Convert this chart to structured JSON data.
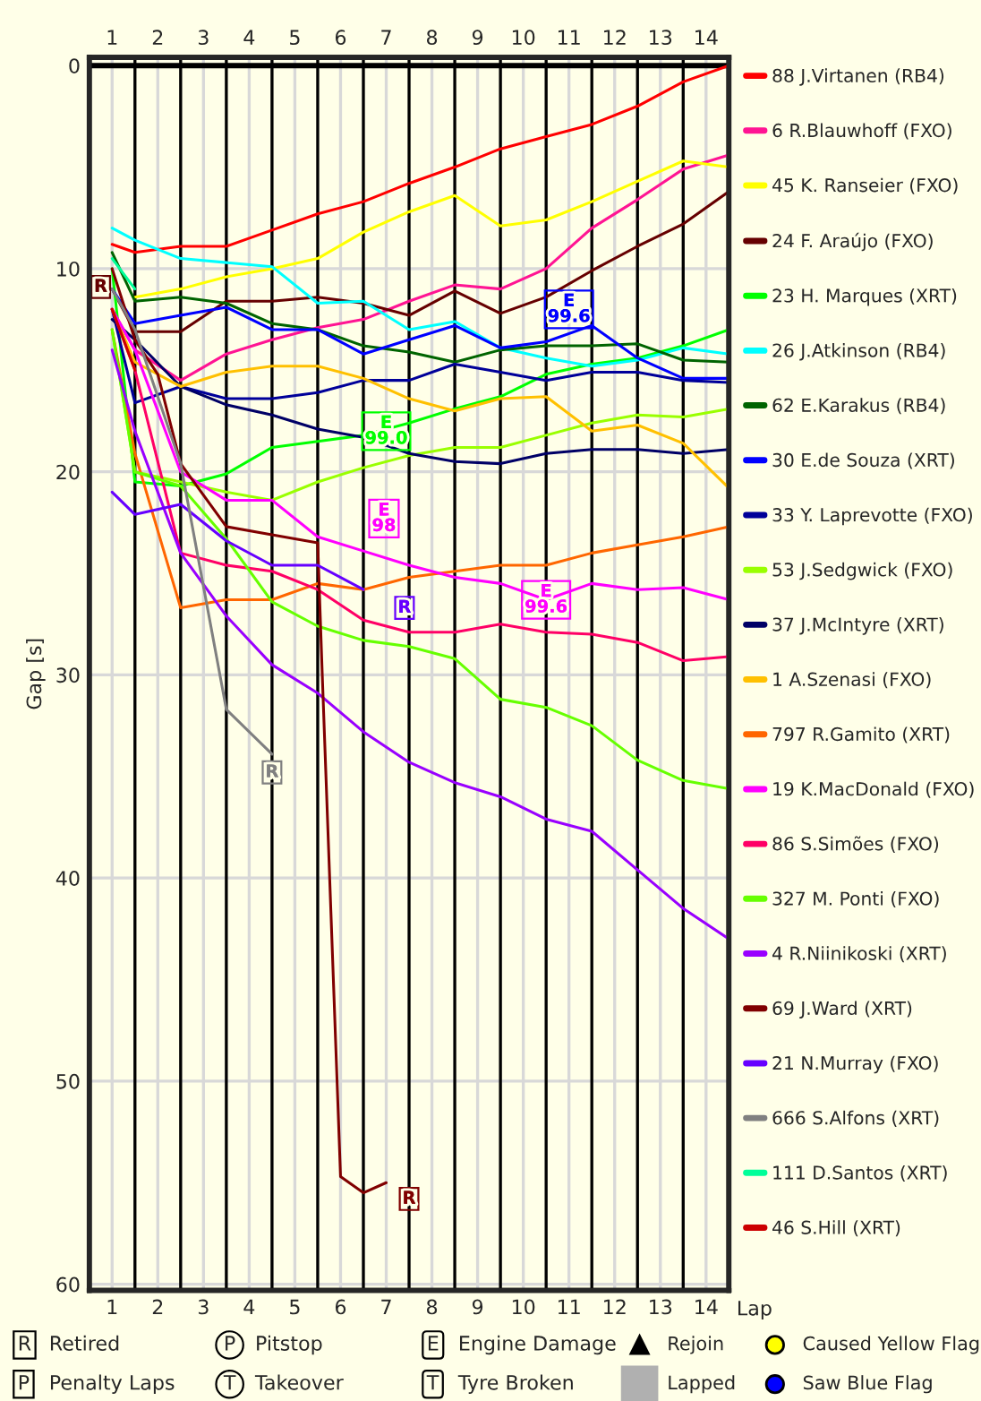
{
  "chart_data": {
    "type": "line",
    "xlabel": "Lap",
    "ylabel": "Gap [s]",
    "x": [
      0.5,
      1,
      2,
      3,
      4,
      5,
      6,
      7,
      8,
      9,
      10,
      11,
      12,
      13,
      14
    ],
    "xlim": [
      0,
      14
    ],
    "ylim": [
      60.3,
      -0.4
    ],
    "xticks": [
      {
        "value": 0.5,
        "label": "1"
      },
      {
        "value": 1.5,
        "label": "2"
      },
      {
        "value": 2.5,
        "label": "3"
      },
      {
        "value": 3.5,
        "label": "4"
      },
      {
        "value": 4.5,
        "label": "5"
      },
      {
        "value": 5.5,
        "label": "6"
      },
      {
        "value": 6.5,
        "label": "7"
      },
      {
        "value": 7.5,
        "label": "8"
      },
      {
        "value": 8.5,
        "label": "9"
      },
      {
        "value": 9.5,
        "label": "10"
      },
      {
        "value": 10.5,
        "label": "11"
      },
      {
        "value": 11.5,
        "label": "12"
      },
      {
        "value": 12.5,
        "label": "13"
      },
      {
        "value": 13.5,
        "label": "14"
      }
    ],
    "x2lim": [
      0,
      14
    ],
    "x2ticks": [
      {
        "value": 0.5,
        "label": "1"
      },
      {
        "value": 1.5,
        "label": "2"
      },
      {
        "value": 2.5,
        "label": "3"
      },
      {
        "value": 3.5,
        "label": "4"
      },
      {
        "value": 4.5,
        "label": "5"
      },
      {
        "value": 5.5,
        "label": "6"
      },
      {
        "value": 6.5,
        "label": "7"
      },
      {
        "value": 7.5,
        "label": "8"
      },
      {
        "value": 8.5,
        "label": "9"
      },
      {
        "value": 9.5,
        "label": "10"
      },
      {
        "value": 10.5,
        "label": "11"
      },
      {
        "value": 11.5,
        "label": "12"
      },
      {
        "value": 12.5,
        "label": "13"
      },
      {
        "value": 13.5,
        "label": "14"
      }
    ],
    "yticks": [
      0,
      10,
      20,
      30,
      40,
      50,
      60
    ],
    "grid": true,
    "legend": "right",
    "marker": "none",
    "line_style": "solid",
    "ref_lines": [
      {
        "axis": "y",
        "value": 0,
        "color": "#000000"
      },
      {
        "axis": "x",
        "value": 1,
        "color": "#000000"
      },
      {
        "axis": "x",
        "value": 2,
        "color": "#000000"
      },
      {
        "axis": "x",
        "value": 3,
        "color": "#000000"
      },
      {
        "axis": "x",
        "value": 4,
        "color": "#000000"
      },
      {
        "axis": "x",
        "value": 5,
        "color": "#000000"
      },
      {
        "axis": "x",
        "value": 6,
        "color": "#000000"
      },
      {
        "axis": "x",
        "value": 7,
        "color": "#000000"
      },
      {
        "axis": "x",
        "value": 8,
        "color": "#000000"
      },
      {
        "axis": "x",
        "value": 9,
        "color": "#000000"
      },
      {
        "axis": "x",
        "value": 10,
        "color": "#000000"
      },
      {
        "axis": "x",
        "value": 11,
        "color": "#000000"
      },
      {
        "axis": "x",
        "value": 12,
        "color": "#000000"
      },
      {
        "axis": "x",
        "value": 13,
        "color": "#000000"
      }
    ],
    "series": [
      {
        "name": "88 J.Virtanen (RB4)",
        "color": "#ff0000",
        "values": [
          8.8,
          9.2,
          8.9,
          8.9,
          8.1,
          7.3,
          6.7,
          5.8,
          5.0,
          4.1,
          3.5,
          2.9,
          2.0,
          0.8,
          0
        ]
      },
      {
        "name": "6 R.Blauwhoff (FXO)",
        "color": "#ff1493",
        "values": [
          12,
          14,
          15.5,
          14.2,
          13.5,
          12.9,
          12.5,
          11.6,
          10.8,
          11.0,
          10.0,
          8.0,
          6.6,
          5.1,
          4.4
        ]
      },
      {
        "name": "45 K. Ranseier (FXO)",
        "color": "#ffff00",
        "values": [
          null,
          11.4,
          11.0,
          10.4,
          10.0,
          9.5,
          8.2,
          7.2,
          6.4,
          7.9,
          7.6,
          6.7,
          5.7,
          4.7,
          5.0
        ]
      },
      {
        "name": "24 F. Araújo (FXO)",
        "color": "#660000",
        "values": [
          11,
          13.1,
          13.1,
          11.6,
          11.6,
          11.4,
          11.7,
          12.3,
          11.1,
          12.2,
          11.4,
          10.1,
          8.9,
          7.8,
          6.2
        ]
      },
      {
        "name": "23 H. Marques (XRT)",
        "color": "#00ff00",
        "values": [
          10,
          20.5,
          20.7,
          20.1,
          18.8,
          18.5,
          18.2,
          17.6,
          16.9,
          16.3,
          15.2,
          14.7,
          14.4,
          13.8,
          13.0
        ]
      },
      {
        "name": "26 J.Atkinson (RB4)",
        "color": "#00ffff",
        "values": [
          8.0,
          8.6,
          9.5,
          9.7,
          9.9,
          11.7,
          11.6,
          13.0,
          12.6,
          13.9,
          14.4,
          14.8,
          14.5,
          13.9,
          14.2
        ]
      },
      {
        "name": "62 E.Karakus (RB4)",
        "color": "#006400",
        "values": [
          9.2,
          11.6,
          11.4,
          11.7,
          12.7,
          13.0,
          13.8,
          14.1,
          14.6,
          14.0,
          13.8,
          13.8,
          13.7,
          14.5,
          14.6
        ]
      },
      {
        "name": "30 E.de Souza (XRT)",
        "color": "#0000ff",
        "values": [
          11,
          12.7,
          12.3,
          11.9,
          13.0,
          13.0,
          14.2,
          13.5,
          12.8,
          13.9,
          13.6,
          12.8,
          14.4,
          15.4,
          15.4
        ]
      },
      {
        "name": "33 Y. Laprevotte (FXO)",
        "color": "#000099",
        "values": [
          12,
          16.6,
          15.8,
          16.4,
          16.4,
          16.1,
          15.5,
          15.5,
          14.7,
          15.1,
          15.5,
          15.1,
          15.1,
          15.5,
          15.6
        ]
      },
      {
        "name": "53 J.Sedgwick (FXO)",
        "color": "#99ff00",
        "values": [
          13,
          20,
          20.5,
          21.0,
          21.4,
          20.5,
          19.8,
          19.2,
          18.8,
          18.8,
          18.2,
          17.6,
          17.2,
          17.3,
          16.9
        ]
      },
      {
        "name": "37 J.McIntyre (XRT)",
        "color": "#000066",
        "values": [
          12.5,
          13.5,
          15.8,
          16.7,
          17.2,
          17.9,
          18.3,
          19.1,
          19.5,
          19.6,
          19.1,
          18.9,
          18.9,
          19.1,
          18.9
        ]
      },
      {
        "name": "1 A.Szenasi (FXO)",
        "color": "#ffc000",
        "values": [
          12,
          14.6,
          15.8,
          15.1,
          14.8,
          14.8,
          15.4,
          16.4,
          17.0,
          16.4,
          16.3,
          18.0,
          17.7,
          18.6,
          20.8
        ]
      },
      {
        "name": "797 R.Gamito (XRT)",
        "color": "#ff6600",
        "values": [
          13,
          19.1,
          26.7,
          26.3,
          26.3,
          25.5,
          25.8,
          25.2,
          24.9,
          24.6,
          24.6,
          24.0,
          23.6,
          23.2,
          22.7
        ]
      },
      {
        "name": "19 K.MacDonald (FXO)",
        "color": "#ff00ff",
        "values": [
          12,
          14,
          20.0,
          21.4,
          21.4,
          23.2,
          23.9,
          24.6,
          25.2,
          25.5,
          26.3,
          25.5,
          25.8,
          25.7,
          26.3
        ]
      },
      {
        "name": "86 S.Simões (FXO)",
        "color": "#ff0066",
        "values": [
          12,
          15,
          24.0,
          24.6,
          24.9,
          25.8,
          27.3,
          27.9,
          27.9,
          27.5,
          27.9,
          28.0,
          28.4,
          29.3,
          29.1
        ]
      },
      {
        "name": "327 M. Ponti (FXO)",
        "color": "#66ff00",
        "values": [
          13,
          20,
          20.7,
          23.3,
          26.4,
          27.6,
          28.3,
          28.6,
          29.2,
          31.2,
          31.6,
          32.5,
          34.2,
          35.2,
          35.6
        ]
      },
      {
        "name": "4 R.Niinikoski (XRT)",
        "color": "#9900ff",
        "values": [
          14,
          18,
          24,
          27.1,
          29.5,
          30.9,
          32.8,
          34.3,
          35.3,
          36.0,
          37.1,
          37.7,
          39.6,
          41.5,
          43.0
        ]
      },
      {
        "name": "69 J.Ward (XRT)",
        "color": "#800000",
        "x": [
          0.5,
          1,
          1.5,
          2,
          3,
          4,
          5,
          5.1,
          5.5,
          6,
          6.5
        ],
        "values": [
          10,
          13.5,
          15.2,
          19.6,
          22.7,
          23.1,
          23.5,
          30,
          54.7,
          55.5,
          55.0
        ]
      },
      {
        "name": "21 N.Murray (FXO)",
        "color": "#6600ff",
        "values": [
          21.0,
          22.1,
          21.6,
          23.4,
          24.6,
          24.6,
          25.8,
          null,
          null,
          null,
          null,
          null,
          null,
          null,
          null
        ]
      },
      {
        "name": "666 S.Alfons (XRT)",
        "color": "#808080",
        "values": [
          11,
          13,
          19.6,
          31.7,
          33.9,
          null,
          null,
          null,
          null,
          null,
          null,
          null,
          null,
          null,
          null
        ]
      },
      {
        "name": "111 D.Santos (XRT)",
        "color": "#00ff99",
        "values": [
          9.5,
          11,
          null,
          null,
          null,
          null,
          null,
          null,
          null,
          null,
          null,
          null,
          null,
          null,
          null
        ]
      },
      {
        "name": "46 S.Hill (XRT)",
        "color": "#cc0000",
        "values": [
          12,
          15,
          null,
          null,
          null,
          null,
          null,
          null,
          null,
          null,
          null,
          null,
          null,
          null,
          null
        ]
      }
    ],
    "annotations": [
      {
        "text": "R",
        "x": 0.25,
        "y": 10.9
      },
      {
        "text": "E\n99.6",
        "x": 10.5,
        "y": 12.0
      },
      {
        "text": "E\n99.0",
        "x": 6.5,
        "y": 18.0
      },
      {
        "text": "E\n98",
        "x": 6.45,
        "y": 22.3
      },
      {
        "text": "R",
        "x": 6.9,
        "y": 26.7
      },
      {
        "text": "E\n99.6",
        "x": 10,
        "y": 26.3
      },
      {
        "text": "R",
        "x": 4,
        "y": 34.8
      },
      {
        "text": "R",
        "x": 7,
        "y": 55.8
      },
      "R",
      "Retired",
      "P",
      "Penalty Laps",
      "P",
      "Pitstop",
      "T",
      "Takeover",
      "E",
      "Engine Damage",
      "T",
      "Tyre Broken",
      "Rejoin",
      "Lapped",
      "Caused Yellow Flag",
      "Saw Blue Flag"
    ]
  }
}
